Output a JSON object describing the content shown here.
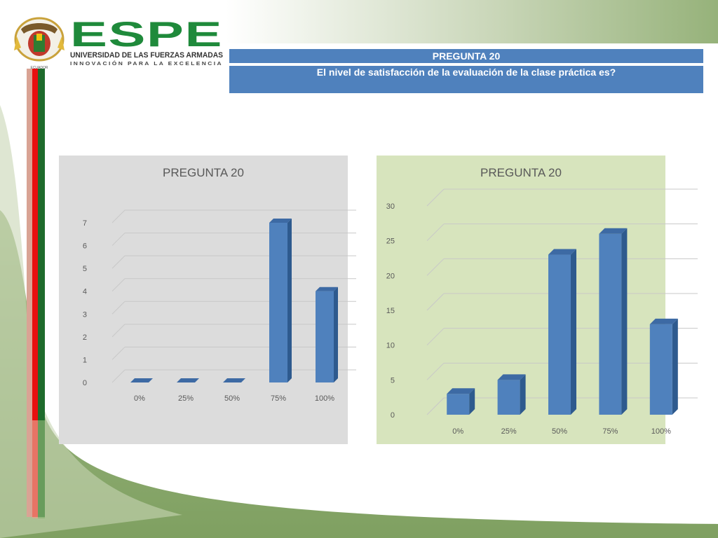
{
  "logo": {
    "name": "ESPE",
    "university": "UNIVERSIDAD DE LAS FUERZAS ARMADAS",
    "motto": "INNOVACIÓN PARA LA EXCELENCIA",
    "country": "ECUADOR"
  },
  "header": {
    "title": "PREGUNTA 20",
    "question": "El nivel de satisfacción de la evaluación de la clase práctica es?"
  },
  "colors": {
    "header": "#4f81bd",
    "bar": "#4f81bd",
    "bar_side": "#2e5a8e",
    "bar_top": "#3d6aa4",
    "panel1": "#dcdcdc",
    "panel2": "#d7e4bd",
    "accent_green": "#8fae72"
  },
  "chart_data": [
    {
      "type": "bar",
      "title": "PREGUNTA 20",
      "categories": [
        "0%",
        "25%",
        "50%",
        "75%",
        "100%"
      ],
      "values": [
        0,
        0,
        0,
        7,
        4
      ],
      "ylim": [
        0,
        7
      ],
      "yticks": [
        "0",
        "1",
        "2",
        "3",
        "4",
        "5",
        "6",
        "7"
      ],
      "grid": true,
      "style": "3d"
    },
    {
      "type": "bar",
      "title": "PREGUNTA 20",
      "categories": [
        "0%",
        "25%",
        "50%",
        "75%",
        "100%"
      ],
      "values": [
        3,
        5,
        23,
        26,
        13
      ],
      "ylim": [
        0,
        30
      ],
      "yticks": [
        "0",
        "5",
        "10",
        "15",
        "20",
        "25",
        "30"
      ],
      "grid": true,
      "style": "3d"
    }
  ]
}
